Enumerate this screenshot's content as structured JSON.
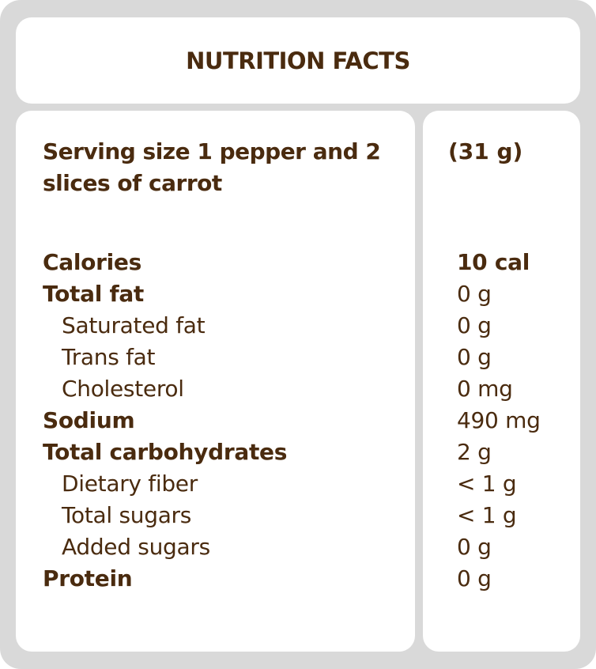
{
  "title": "NUTRITION FACTS",
  "serving": {
    "label": "Serving size 1 pepper and 2 slices of carrot",
    "amount": "(31 g)"
  },
  "rows": [
    {
      "name": "Calories",
      "value": "10 cal",
      "bold": true,
      "indent": false
    },
    {
      "name": "Total fat",
      "value": "0 g",
      "bold": true,
      "indent": false
    },
    {
      "name": "Saturated fat",
      "value": "0 g",
      "bold": false,
      "indent": true
    },
    {
      "name": "Trans fat",
      "value": "0 g",
      "bold": false,
      "indent": true
    },
    {
      "name": "Cholesterol",
      "value": "0 mg",
      "bold": false,
      "indent": true
    },
    {
      "name": "Sodium",
      "value": "490 mg",
      "bold": true,
      "indent": false
    },
    {
      "name": "Total carbohydrates",
      "value": "2 g",
      "bold": true,
      "indent": false
    },
    {
      "name": "Dietary fiber",
      "value": "< 1 g",
      "bold": false,
      "indent": true
    },
    {
      "name": "Total sugars",
      "value": "< 1 g",
      "bold": false,
      "indent": true
    },
    {
      "name": "Added sugars",
      "value": "0 g",
      "bold": false,
      "indent": true
    },
    {
      "name": "Protein",
      "value": "0 g",
      "bold": true,
      "indent": false
    }
  ]
}
